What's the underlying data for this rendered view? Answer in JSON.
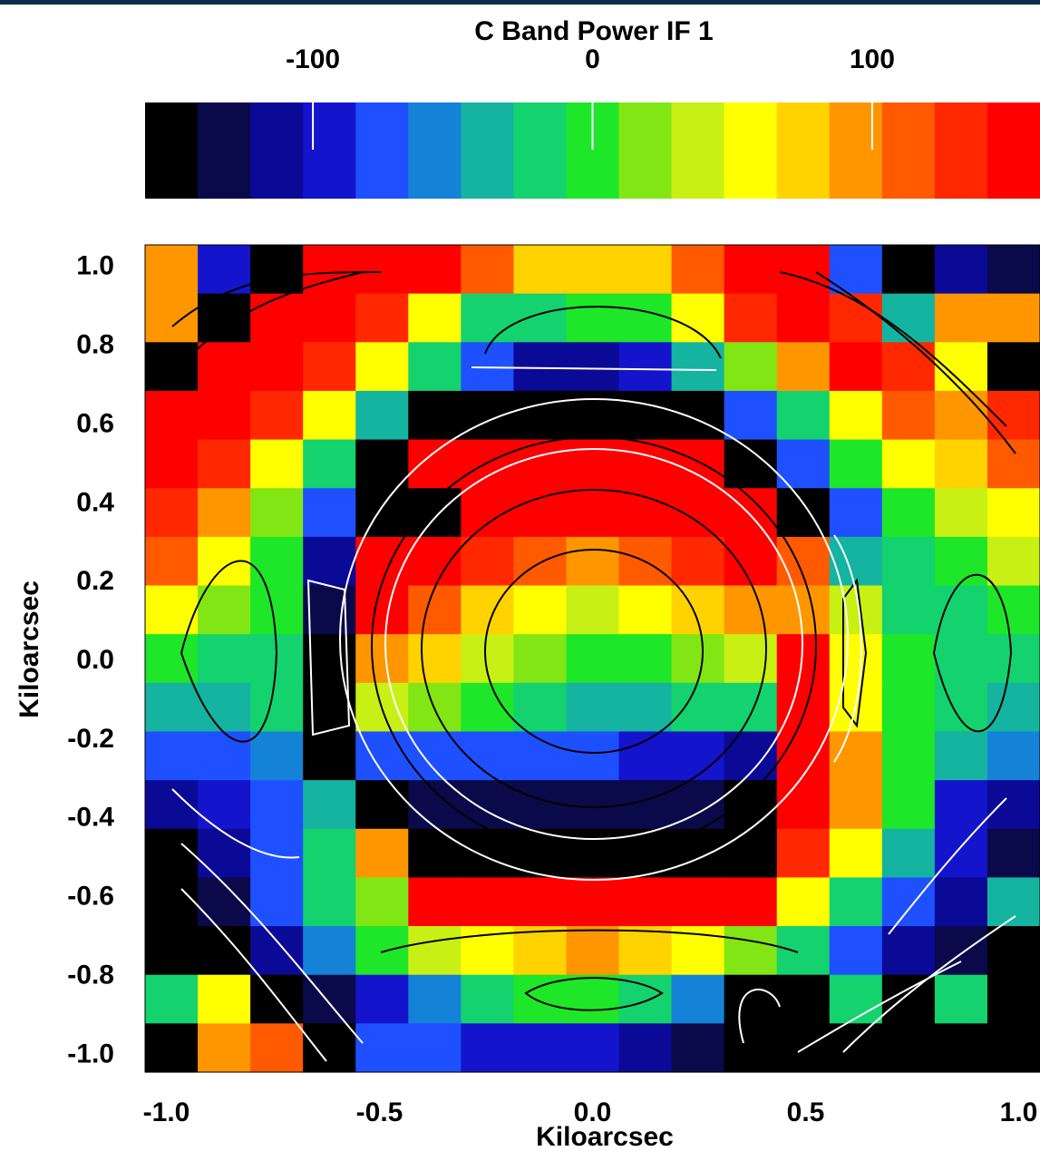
{
  "chart_data": {
    "type": "heatmap",
    "title": "C Band Power IF 1",
    "xlabel": "Kiloarcsec",
    "ylabel": "Kiloarcsec",
    "xlim": [
      -1.05,
      1.05
    ],
    "ylim": [
      -1.05,
      1.05
    ],
    "x_ticks": [
      "-1.0",
      "-0.5",
      "0.0",
      "0.5",
      "1.0"
    ],
    "y_ticks": [
      "1.0",
      "0.8",
      "0.6",
      "0.4",
      "0.2",
      "0.0",
      "-0.2",
      "-0.4",
      "-0.6",
      "-0.8",
      "-1.0"
    ],
    "colorbar": {
      "range": [
        -160,
        160
      ],
      "ticks": [
        "-100",
        "0",
        "100"
      ],
      "palette": [
        "#000000",
        "#0a0a4a",
        "#0a0a96",
        "#1414cc",
        "#1e50ff",
        "#1482d7",
        "#14b4a0",
        "#14d26e",
        "#1ee628",
        "#82e614",
        "#c8f014",
        "#ffff00",
        "#ffd200",
        "#ff9600",
        "#ff5a00",
        "#ff2800",
        "#ff0000"
      ]
    },
    "grid_size": [
      17,
      17
    ],
    "color_index_rows": [
      [
        13,
        3,
        0,
        16,
        16,
        16,
        14,
        12,
        12,
        12,
        14,
        16,
        16,
        4,
        0,
        2,
        1
      ],
      [
        13,
        0,
        16,
        16,
        15,
        11,
        7,
        7,
        8,
        8,
        11,
        15,
        16,
        15,
        6,
        13,
        13
      ],
      [
        0,
        16,
        16,
        15,
        11,
        7,
        4,
        2,
        2,
        3,
        6,
        9,
        13,
        16,
        15,
        11,
        0
      ],
      [
        16,
        16,
        15,
        11,
        6,
        0,
        0,
        0,
        0,
        0,
        0,
        4,
        7,
        11,
        14,
        13,
        15
      ],
      [
        16,
        15,
        11,
        7,
        0,
        16,
        16,
        16,
        16,
        16,
        16,
        0,
        4,
        8,
        11,
        12,
        14
      ],
      [
        15,
        13,
        9,
        4,
        0,
        0,
        16,
        16,
        16,
        16,
        16,
        16,
        0,
        4,
        8,
        10,
        11
      ],
      [
        14,
        11,
        8,
        2,
        16,
        16,
        15,
        14,
        13,
        14,
        15,
        16,
        14,
        6,
        7,
        8,
        10
      ],
      [
        11,
        9,
        8,
        1,
        16,
        14,
        12,
        11,
        10,
        11,
        12,
        13,
        13,
        10,
        7,
        7,
        8
      ],
      [
        8,
        7,
        7,
        0,
        13,
        12,
        10,
        9,
        8,
        8,
        9,
        10,
        16,
        11,
        8,
        7,
        7
      ],
      [
        6,
        6,
        7,
        0,
        10,
        9,
        8,
        7,
        6,
        6,
        7,
        7,
        16,
        11,
        8,
        7,
        6
      ],
      [
        4,
        4,
        5,
        0,
        4,
        4,
        4,
        4,
        4,
        3,
        3,
        2,
        16,
        13,
        8,
        6,
        5
      ],
      [
        2,
        3,
        4,
        6,
        0,
        1,
        1,
        1,
        1,
        1,
        1,
        0,
        16,
        13,
        8,
        3,
        2
      ],
      [
        0,
        2,
        4,
        7,
        13,
        0,
        0,
        0,
        0,
        0,
        0,
        0,
        15,
        11,
        6,
        3,
        1
      ],
      [
        0,
        1,
        4,
        7,
        9,
        16,
        16,
        16,
        16,
        16,
        16,
        16,
        11,
        7,
        4,
        2,
        6
      ],
      [
        0,
        0,
        2,
        5,
        8,
        10,
        11,
        12,
        13,
        12,
        11,
        9,
        7,
        4,
        2,
        1,
        0
      ],
      [
        7,
        11,
        0,
        1,
        3,
        5,
        7,
        8,
        8,
        7,
        5,
        0,
        0,
        7,
        0,
        7,
        0
      ],
      [
        0,
        13,
        14,
        0,
        4,
        4,
        3,
        3,
        3,
        2,
        1,
        0,
        0,
        0,
        0,
        0,
        0
      ]
    ]
  }
}
